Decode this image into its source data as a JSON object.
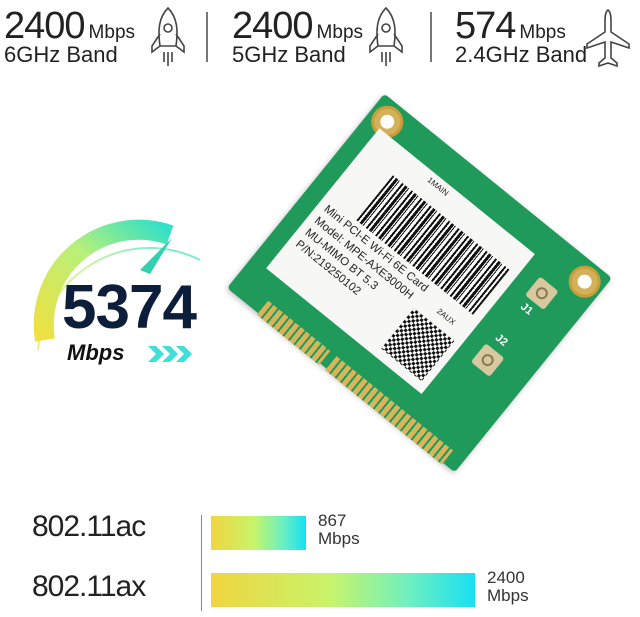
{
  "specs": [
    {
      "speed": "2400",
      "unit": "Mbps",
      "band": "6GHz Band",
      "icon": "rocket-icon"
    },
    {
      "speed": "2400",
      "unit": "Mbps",
      "band": "5GHz Band",
      "icon": "rocket-icon"
    },
    {
      "speed": "574",
      "unit": "Mbps",
      "band": "2.4GHz Band",
      "icon": "airplane-icon"
    }
  ],
  "gauge": {
    "value": "5374",
    "unit": "Mbps"
  },
  "card_label": {
    "top_marker": "1MAIN",
    "aux_marker": "2AUX",
    "lines": [
      "Mini PCI-E Wi-Fi 6E Card",
      "Model: MPE-AXE3000H",
      "MU-MIMO  BT 5.3",
      "P/N:219250102"
    ],
    "connectors": [
      "J1",
      "J2"
    ]
  },
  "comparison": [
    {
      "standard": "802.11ac",
      "value": "867",
      "unit": "Mbps",
      "fraction": 0.36
    },
    {
      "standard": "802.11ax",
      "value": "2400",
      "unit": "Mbps",
      "fraction": 1.0
    }
  ],
  "colors": {
    "gradient_start": "#f0d540",
    "gradient_end": "#18e0f4",
    "card_green": "#1f9a5a",
    "gauge_number": "#0d1e3a"
  }
}
